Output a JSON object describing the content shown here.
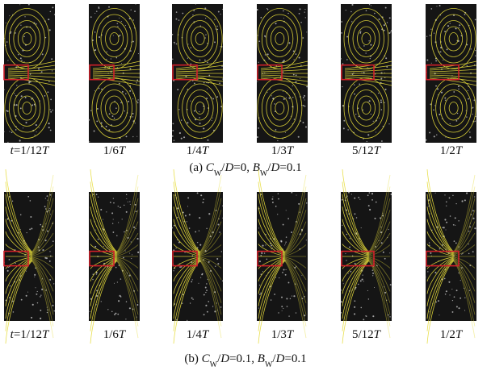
{
  "rows": [
    {
      "labels": [
        [
          {
            "t": "t",
            "i": true
          },
          {
            "t": "=1/12"
          },
          {
            "t": "T",
            "i": true
          }
        ],
        [
          {
            "t": "1/6"
          },
          {
            "t": "T",
            "i": true
          }
        ],
        [
          {
            "t": "1/4"
          },
          {
            "t": "T",
            "i": true
          }
        ],
        [
          {
            "t": "1/3"
          },
          {
            "t": "T",
            "i": true
          }
        ],
        [
          {
            "t": "5/12"
          },
          {
            "t": "T",
            "i": true
          }
        ],
        [
          {
            "t": "1/2"
          },
          {
            "t": "T",
            "i": true
          }
        ]
      ],
      "caption": [
        {
          "t": "(a) "
        },
        {
          "t": "C",
          "i": true
        },
        {
          "t": "W",
          "sub": true
        },
        {
          "t": "/"
        },
        {
          "t": "D",
          "i": true
        },
        {
          "t": "=0, "
        },
        {
          "t": "B",
          "i": true
        },
        {
          "t": "W",
          "sub": true
        },
        {
          "t": "/"
        },
        {
          "t": "D",
          "i": true
        },
        {
          "t": "=0.1"
        }
      ]
    },
    {
      "labels": [
        [
          {
            "t": "t",
            "i": true
          },
          {
            "t": "=1/12"
          },
          {
            "t": "T",
            "i": true
          }
        ],
        [
          {
            "t": "1/6"
          },
          {
            "t": "T",
            "i": true
          }
        ],
        [
          {
            "t": "1/4"
          },
          {
            "t": "T",
            "i": true
          }
        ],
        [
          {
            "t": "1/3"
          },
          {
            "t": "T",
            "i": true
          }
        ],
        [
          {
            "t": "5/12"
          },
          {
            "t": "T",
            "i": true
          }
        ],
        [
          {
            "t": "1/2"
          },
          {
            "t": "T",
            "i": true
          }
        ]
      ],
      "caption": [
        {
          "t": "(b) "
        },
        {
          "t": "C",
          "i": true
        },
        {
          "t": "W",
          "sub": true
        },
        {
          "t": "/"
        },
        {
          "t": "D",
          "i": true
        },
        {
          "t": "=0.1, "
        },
        {
          "t": "B",
          "i": true
        },
        {
          "t": "W",
          "sub": true
        },
        {
          "t": "/"
        },
        {
          "t": "D",
          "i": true
        },
        {
          "t": "=0.1"
        }
      ]
    }
  ]
}
